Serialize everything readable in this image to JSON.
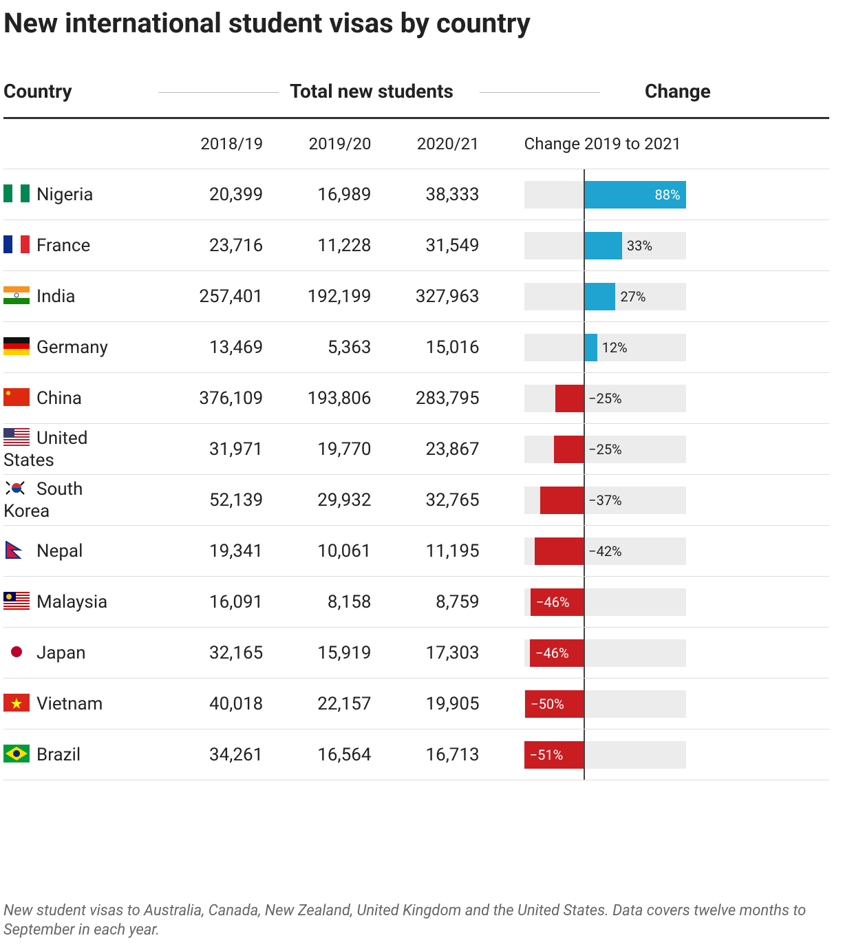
{
  "title": "New international student visas by country",
  "header": {
    "country": "Country",
    "group": "Total new students",
    "change": "Change"
  },
  "subheader": {
    "years": [
      "2018/19",
      "2019/20",
      "2020/21"
    ],
    "change": "Change 2019 to 2021"
  },
  "rows": [
    {
      "country": "Nigeria",
      "values": [
        "20,399",
        "16,989",
        "38,333"
      ],
      "change": 87.9,
      "change_label": "88%"
    },
    {
      "country": "France",
      "values": [
        "23,716",
        "11,228",
        "31,549"
      ],
      "change": 33.0,
      "change_label": "33%"
    },
    {
      "country": "India",
      "values": [
        "257,401",
        "192,199",
        "327,963"
      ],
      "change": 27.4,
      "change_label": "27%"
    },
    {
      "country": "Germany",
      "values": [
        "13,469",
        "5,363",
        "15,016"
      ],
      "change": 11.5,
      "change_label": "12%"
    },
    {
      "country": "China",
      "values": [
        "376,109",
        "193,806",
        "283,795"
      ],
      "change": -24.5,
      "change_label": "−25%"
    },
    {
      "country": "United States",
      "values": [
        "31,971",
        "19,770",
        "23,867"
      ],
      "change": -25.3,
      "change_label": "−25%"
    },
    {
      "country": "South Korea",
      "values": [
        "52,139",
        "29,932",
        "32,765"
      ],
      "change": -37.2,
      "change_label": "−37%"
    },
    {
      "country": "Nepal",
      "values": [
        "19,341",
        "10,061",
        "11,195"
      ],
      "change": -42.1,
      "change_label": "−42%"
    },
    {
      "country": "Malaysia",
      "values": [
        "16,091",
        "8,158",
        "8,759"
      ],
      "change": -45.6,
      "change_label": "−46%"
    },
    {
      "country": "Japan",
      "values": [
        "32,165",
        "15,919",
        "17,303"
      ],
      "change": -46.2,
      "change_label": "−46%"
    },
    {
      "country": "Vietnam",
      "values": [
        "40,018",
        "22,157",
        "19,905"
      ],
      "change": -50.3,
      "change_label": "−50%"
    },
    {
      "country": "Brazil",
      "values": [
        "34,261",
        "16,564",
        "16,713"
      ],
      "change": -51.2,
      "change_label": "−51%"
    }
  ],
  "footnote": "New student visas to Australia, Canada, New Zealand, United Kingdom and the United States. Data covers twelve months to September in each year."
}
